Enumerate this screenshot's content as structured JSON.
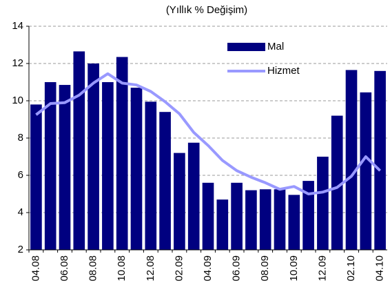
{
  "chart_data": {
    "type": "bar",
    "title": "(Yıllık % Değişim)",
    "categories": [
      "04.08",
      null,
      "06.08",
      null,
      "08.08",
      null,
      "10.08",
      null,
      "12.08",
      null,
      "02.09",
      null,
      "04.09",
      null,
      "06.09",
      null,
      "08.09",
      null,
      "10.09",
      null,
      "12.09",
      null,
      "02.10",
      null,
      "04.10"
    ],
    "series": [
      {
        "name": "Mal",
        "type": "bar",
        "color": "#000080",
        "values": [
          9.8,
          11.0,
          10.85,
          12.65,
          12.0,
          11.0,
          12.35,
          10.7,
          9.95,
          9.4,
          7.2,
          7.75,
          5.6,
          4.7,
          5.6,
          5.2,
          5.25,
          5.25,
          4.95,
          5.7,
          7.0,
          9.2,
          11.65,
          10.45,
          11.6
        ]
      },
      {
        "name": "Hizmet",
        "type": "line",
        "color": "#9999ff",
        "values": [
          9.25,
          9.85,
          9.9,
          10.3,
          10.95,
          11.45,
          10.95,
          10.85,
          10.5,
          9.95,
          9.3,
          8.3,
          7.6,
          6.8,
          6.25,
          5.9,
          5.6,
          5.25,
          5.4,
          5.0,
          5.1,
          5.35,
          5.95,
          7.0,
          6.25
        ]
      }
    ],
    "ylim": [
      2,
      14
    ],
    "yticks": [
      2,
      4,
      6,
      8,
      10,
      12,
      14
    ],
    "grid": true
  }
}
